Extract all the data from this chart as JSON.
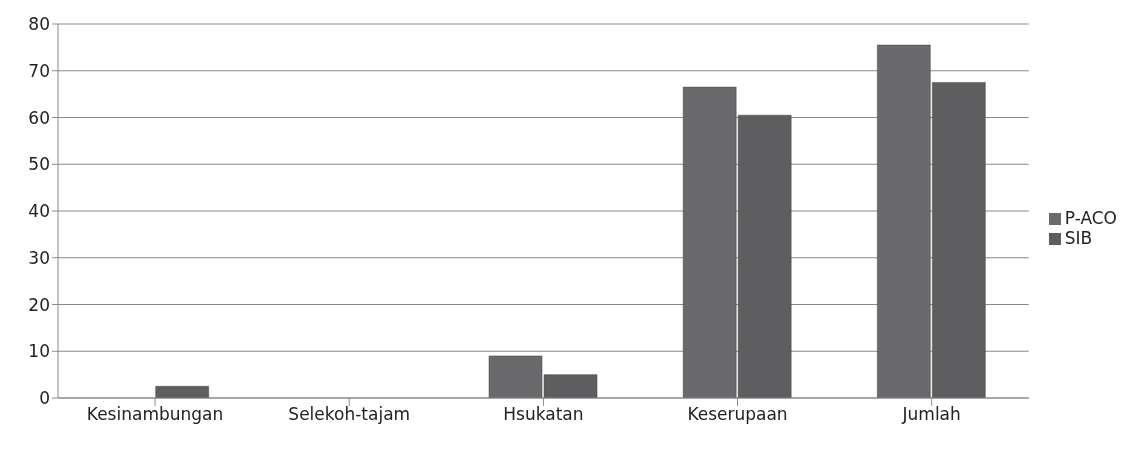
{
  "chart_data": {
    "type": "bar",
    "categories": [
      "Kesinambungan",
      "Selekoh-tajam",
      "Hsukatan",
      "Keserupaan",
      "Jumlah"
    ],
    "series": [
      {
        "name": "P-ACO",
        "color": "#6a6a6c",
        "values": [
          0,
          0,
          9,
          66.5,
          75.5
        ]
      },
      {
        "name": "SIB",
        "color": "#5e5e60",
        "values": [
          2.5,
          0,
          5,
          60.5,
          67.5
        ]
      }
    ],
    "ylim": [
      0,
      80
    ],
    "yticks": [
      0,
      10,
      20,
      30,
      40,
      50,
      60,
      70,
      80
    ],
    "grid": "y",
    "legend": "right"
  }
}
